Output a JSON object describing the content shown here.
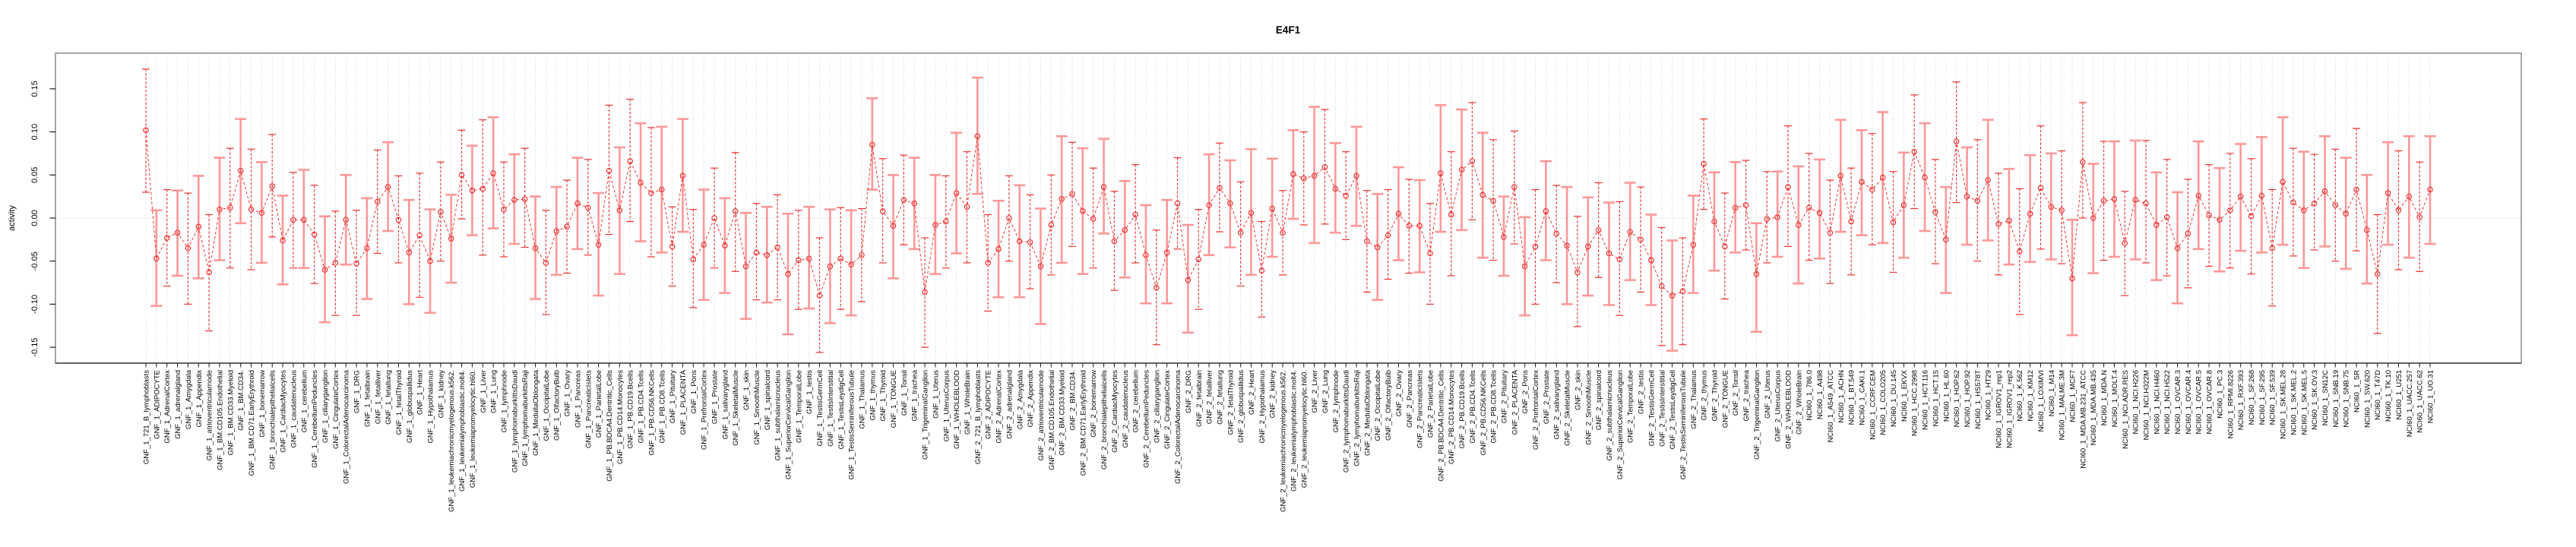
{
  "title": "E4F1",
  "axis": {
    "ylabel": "activity",
    "ytick_labels": [
      "-0.15",
      "-0.10",
      "-0.05",
      "0.00",
      "0.05",
      "0.10",
      "0.15"
    ],
    "ytick_values": [
      -0.15,
      -0.1,
      -0.05,
      0.0,
      0.05,
      0.1,
      0.15
    ]
  },
  "colors": {
    "point_red": "#ee3333",
    "bar_pink": "#ff9898",
    "grid": "#d4d4d4",
    "box": "#9c9c9c",
    "axis_black": "#1a1a1a",
    "title_black": "#000000"
  },
  "chart_data": {
    "type": "line",
    "title": "E4F1",
    "xlabel": "",
    "ylabel": "activity",
    "ylim": [
      -0.18,
      0.19
    ],
    "yticks": [
      -0.15,
      -0.1,
      -0.05,
      0.0,
      0.05,
      0.1,
      0.15
    ],
    "grid": "vertical dotted line per category, dotted zero line",
    "legend": "none",
    "point_style": "open red circles joined by dashed red line, error bars alternating dashed red / solid pink",
    "categories": [
      "GNF_1_721_B_lymphoblasts",
      "GNF_1_ADIPOCYTE",
      "GNF_1_AdrenalCortex",
      "GNF_1_adrenalgland",
      "GNF_1_Amygdala",
      "GNF_1_Appendix",
      "GNF_1_atrioventricularnode",
      "GNF_1_BM.CD105.Endothelial",
      "GNF_1_BM.CD33.Myeloid",
      "GNF_1_BM.CD34.",
      "GNF_1_BM.CD71.EarlyErythroid",
      "GNF_1_bonemarrow",
      "GNF_1_bronchialepithelialcells",
      "GNF_1_CardiacMyocytes",
      "GNF_1_caudatenucleus",
      "GNF_1_cerebellum",
      "GNF_1_CerebellumPeduncles",
      "GNF_1_ciliaryganglion",
      "GNF_1_CingulateCortex",
      "GNF_1_ColorectalAdenocarcinoma",
      "GNF_1_DRG",
      "GNF_1_fetalbrain",
      "GNF_1_fetalliver",
      "GNF_1_fetallung",
      "GNF_1_fetalThyroid",
      "GNF_1_globuspallidus",
      "GNF_1_Heart",
      "GNF_1_Hypothalamus",
      "GNF_1_kidney",
      "GNF_1_leukemiachronicmyelogenous.k562.",
      "GNF_1_leukemialymphoblastic.molt4.",
      "GNF_1_leukemiapromyelocytic.hl60.",
      "GNF_1_Liver",
      "GNF_1_Lung",
      "GNF_1_lymphnode",
      "GNF_1_lymphomaburkittsDaudi",
      "GNF_1_lymphomaburkittsRaji",
      "GNF_1_MedullaOblongata",
      "GNF_1_OccipitalLobe",
      "GNF_1_OlfactoryBulb",
      "GNF_1_Ovary",
      "GNF_1_Pancreas",
      "GNF_1_PancreaticIslets",
      "GNF_1_ParietalLobe",
      "GNF_1_PB.BDCA4.Dentritic_Cells",
      "GNF_1_PB.CD14.Monocytes",
      "GNF_1_PB.CD19.Bcells",
      "GNF_1_PB.CD4.Tcells",
      "GNF_1_PB.CD56.NKCells",
      "GNF_1_PB.CD8.Tcells",
      "GNF_1_Pituitary",
      "GNF_1_PLACENTA",
      "GNF_1_Pons",
      "GNF_1_PrefrontalCortex",
      "GNF_1_Prostate",
      "GNF_1_salivarygland",
      "GNF_1_SkeletalMuscle",
      "GNF_1_skin",
      "GNF_1_SmoothMuscle",
      "GNF_1_spinalcord",
      "GNF_1_subthalamicnucleus",
      "GNF_1_SuperiorCervicalGanglion",
      "GNF_1_TemporalLobe",
      "GNF_1_testis",
      "GNF_1_TestisGermCell",
      "GNF_1_TestisInterstitial",
      "GNF_1_TestisLeydigCell",
      "GNF_1_TestisSeminiferousTubule",
      "GNF_1_Thalamus",
      "GNF_1_thymus",
      "GNF_1_Thyroid",
      "GNF_1_TONGUE",
      "GNF_1_Tonsil",
      "GNF_1_trachea",
      "GNF_1_TrigeminalGanglion",
      "GNF_1_Uterus",
      "GNF_1_UterusCorpus",
      "GNF_1_WHOLEBLOOD",
      "GNF_1_WholeBrain",
      "GNF_2_721_B_lymphoblasts",
      "GNF_2_ADIPOCYTE",
      "GNF_2_AdrenalCortex",
      "GNF_2_adrenalgland",
      "GNF_2_Amygdala",
      "GNF_2_Appendix",
      "GNF_2_atrioventricularnode",
      "GNF_2_BM.CD105.Endothelial",
      "GNF_2_BM.CD33.Myeloid",
      "GNF_2_BM.CD34.",
      "GNF_2_BM.CD71.EarlyErythroid",
      "GNF_2_bonemarrow",
      "GNF_2_bronchialepithelialcells",
      "GNF_2_CardiacMyocytes",
      "GNF_2_caudatenucleus",
      "GNF_2_cerebellum",
      "GNF_2_CerebellumPeduncles",
      "GNF_2_ciliaryganglion",
      "GNF_2_CingulateCortex",
      "GNF_2_ColorectalAdenocarcinoma",
      "GNF_2_DRG",
      "GNF_2_fetalbrain",
      "GNF_2_fetalliver",
      "GNF_2_fetallung",
      "GNF_2_fetalThyroid",
      "GNF_2_globuspallidus",
      "GNF_2_Heart",
      "GNF_2_Hypothalamus",
      "GNF_2_kidney",
      "GNF_2_leukemiachronicmyelogenous.k562.",
      "GNF_2_leukemialymphoblastic.molt4.",
      "GNF_2_leukemiapromyelocytic.hl60.",
      "GNF_2_Liver",
      "GNF_2_Lung",
      "GNF_2_lymphnode",
      "GNF_2_lymphomaburkittsDaudi",
      "GNF_2_lymphomaburkittsRaji",
      "GNF_2_MedullaOblongata",
      "GNF_2_OccipitalLobe",
      "GNF_2_OlfactoryBulb",
      "GNF_2_Ovary",
      "GNF_2_Pancreas",
      "GNF_2_PancreaticIslets",
      "GNF_2_ParietalLobe",
      "GNF_2_PB.BDCA4.Dentritic_Cells",
      "GNF_2_PB.CD14.Monocytes",
      "GNF_2_PB.CD19.Bcells",
      "GNF_2_PB.CD4.Tcells",
      "GNF_2_PB.CD56.NKCells",
      "GNF_2_PB.CD8.Tcells",
      "GNF_2_Pituitary",
      "GNF_2_PLACENTA",
      "GNF_2_Pons",
      "GNF_2_PrefrontalCortex",
      "GNF_2_Prostate",
      "GNF_2_salivarygland",
      "GNF_2_SkeletalMuscle",
      "GNF_2_skin",
      "GNF_2_SmoothMuscle",
      "GNF_2_spinalcord",
      "GNF_2_subthalamicnucleus",
      "GNF_2_SuperiorCervicalGanglion",
      "GNF_2_TemporalLobe",
      "GNF_2_testis",
      "GNF_2_TestisGermCell",
      "GNF_2_TestisInterstitial",
      "GNF_2_TestisLeydigCell",
      "GNF_2_TestisSeminiferousTubule",
      "GNF_2_Thalamus",
      "GNF_2_thymus",
      "GNF_2_Thyroid",
      "GNF_2_TONGUE",
      "GNF_2_Tonsil",
      "GNF_2_trachea",
      "GNF_2_TrigeminalGanglion",
      "GNF_2_Uterus",
      "GNF_2_UterusCorpus",
      "GNF_2_WHOLEBLOOD",
      "GNF_2_WholeBrain",
      "NCI60_1_786.0",
      "NCI60_1_A498",
      "NCI60_1_A549_ATCC",
      "NCI60_1_ACHN",
      "NCI60_1_BT.549",
      "NCI60_1_CAKI.1",
      "NCI60_1_CCRF.CEM",
      "NCI60_1_COLO205",
      "NCI60_1_DU.145",
      "NCI60_1_EKVX",
      "NCI60_1_HCC.2998",
      "NCI60_1_HCT.116",
      "NCI60_1_HCT.15",
      "NCI60_1_HL.60",
      "NCI60_1_HOP.62",
      "NCI60_1_HOP.92",
      "NCI60_1_HS578T",
      "NCI60_1_HT29",
      "NCI60_1_IGROV1_rep1",
      "NCI60_1_IGROV1_rep2",
      "NCI60_1_K.562",
      "NCI60_1_KM12",
      "NCI60_1_LOXIMVI",
      "NCI60_1_M14",
      "NCI60_1_MALME.3M",
      "NCI60_1_MCF7",
      "NCI60_1_MDA.MB.231_ATCC",
      "NCI60_1_MDA.MB.435",
      "NCI60_1_MDA.N",
      "NCI60_1_MOLT.4",
      "NCI60_1_NCI.ADR.RES",
      "NCI60_1_NCI.H226",
      "NCI60_1_NCI.H322M",
      "NCI60_1_NCI.H460",
      "NCI60_1_NCI.H522",
      "NCI60_1_OVCAR.3",
      "NCI60_1_OVCAR.4",
      "NCI60_1_OVCAR.5",
      "NCI60_1_OVCAR.8",
      "NCI60_1_PC.3",
      "NCI60_1_RPMI.8226",
      "NCI60_1_RXF.393",
      "NCI60_1_SF.268",
      "NCI60_1_SF.295",
      "NCI60_1_SF.539",
      "NCI60_1_SK.MEL.28",
      "NCI60_1_SK.MEL.2",
      "NCI60_1_SK.MEL.5",
      "NCI60_1_SK.OV.3",
      "NCI60_1_SN12C",
      "NCI60_1_SNB.19",
      "NCI60_1_SNB.75",
      "NCI60_1_SR",
      "NCI60_1_SW.620",
      "NCI60_1_T47D",
      "NCI60_1_TK.10",
      "NCI60_1_U251",
      "NCI60_1_UACC.257",
      "NCI60_1_UACC.62",
      "NCI60_1_UO.31"
    ],
    "values": [
      0.102,
      -0.047,
      -0.023,
      -0.017,
      -0.035,
      -0.01,
      -0.063,
      0.01,
      0.012,
      0.055,
      0.01,
      0.006,
      0.037,
      -0.026,
      -0.002,
      -0.002,
      -0.019,
      -0.06,
      -0.052,
      -0.002,
      -0.053,
      -0.035,
      0.019,
      0.036,
      -0.002,
      -0.04,
      -0.02,
      -0.05,
      0.007,
      -0.024,
      0.05,
      0.032,
      0.034,
      0.052,
      0.01,
      0.021,
      0.022,
      -0.035,
      -0.052,
      -0.015,
      -0.01,
      0.017,
      0.012,
      -0.031,
      0.055,
      0.009,
      0.066,
      0.041,
      0.029,
      0.033,
      -0.033,
      0.049,
      -0.048,
      -0.031,
      0.0,
      -0.032,
      0.008,
      -0.056,
      -0.04,
      -0.043,
      -0.034,
      -0.065,
      -0.049,
      -0.047,
      -0.09,
      -0.056,
      -0.047,
      -0.054,
      -0.043,
      0.085,
      0.008,
      -0.009,
      0.021,
      0.017,
      -0.086,
      -0.008,
      -0.004,
      0.029,
      0.013,
      0.095,
      -0.052,
      -0.036,
      0.0,
      -0.027,
      -0.028,
      -0.056,
      -0.008,
      0.022,
      0.028,
      0.008,
      -0.001,
      0.036,
      -0.027,
      -0.014,
      0.004,
      -0.043,
      -0.081,
      -0.04,
      0.017,
      -0.072,
      -0.048,
      0.015,
      0.035,
      0.017,
      -0.017,
      0.006,
      -0.061,
      0.011,
      -0.017,
      0.051,
      0.046,
      0.049,
      0.059,
      0.034,
      0.026,
      0.049,
      -0.027,
      -0.034,
      -0.02,
      0.005,
      -0.009,
      -0.009,
      -0.041,
      0.052,
      0.004,
      0.056,
      0.066,
      0.027,
      0.02,
      -0.022,
      0.036,
      -0.056,
      -0.033,
      0.008,
      -0.018,
      -0.032,
      -0.063,
      -0.033,
      -0.014,
      -0.041,
      -0.048,
      -0.016,
      -0.025,
      -0.049,
      -0.079,
      -0.09,
      -0.085,
      -0.031,
      0.063,
      -0.004,
      -0.033,
      0.012,
      0.015,
      -0.065,
      -0.001,
      0.001,
      0.036,
      -0.008,
      0.012,
      0.006,
      -0.017,
      0.049,
      -0.004,
      0.042,
      0.033,
      0.047,
      -0.005,
      0.015,
      0.077,
      0.047,
      0.007,
      -0.025,
      0.089,
      0.025,
      0.02,
      0.044,
      -0.007,
      -0.003,
      -0.039,
      0.005,
      0.035,
      0.013,
      0.009,
      -0.07,
      0.065,
      0.0,
      0.02,
      0.022,
      -0.029,
      0.021,
      0.017,
      -0.008,
      0.001,
      -0.035,
      -0.018,
      0.026,
      0.003,
      -0.002,
      0.009,
      0.025,
      0.002,
      0.026,
      -0.035,
      0.042,
      0.018,
      0.009,
      0.017,
      0.031,
      0.015,
      0.005,
      0.033,
      -0.014,
      -0.065,
      0.029,
      0.009,
      0.025,
      0.001,
      0.033
    ],
    "err_hi": [
      0.173,
      0.009,
      0.033,
      0.032,
      0.029,
      0.049,
      0.004,
      0.07,
      0.081,
      0.115,
      0.08,
      0.065,
      0.097,
      0.026,
      0.053,
      0.056,
      0.038,
      0.002,
      0.008,
      0.05,
      0.009,
      0.023,
      0.079,
      0.088,
      0.049,
      0.021,
      0.052,
      0.01,
      0.065,
      0.027,
      0.102,
      0.084,
      0.114,
      0.117,
      0.065,
      0.074,
      0.081,
      0.025,
      0.009,
      0.036,
      0.044,
      0.07,
      0.068,
      0.029,
      0.131,
      0.082,
      0.138,
      0.11,
      0.105,
      0.106,
      0.013,
      0.115,
      0.01,
      0.033,
      0.058,
      0.023,
      0.076,
      0.006,
      0.017,
      0.013,
      0.027,
      0.005,
      0.009,
      0.013,
      -0.023,
      0.01,
      0.012,
      0.009,
      0.011,
      0.139,
      0.069,
      0.05,
      0.073,
      0.07,
      -0.023,
      0.05,
      0.049,
      0.099,
      0.077,
      0.163,
      0.004,
      0.02,
      0.049,
      0.038,
      0.027,
      0.011,
      0.05,
      0.095,
      0.088,
      0.081,
      0.058,
      0.092,
      0.031,
      0.043,
      0.062,
      0.015,
      -0.014,
      0.021,
      0.07,
      -0.008,
      0.01,
      0.074,
      0.087,
      0.067,
      0.042,
      0.08,
      -0.004,
      0.069,
      0.032,
      0.102,
      0.1,
      0.129,
      0.126,
      0.087,
      0.077,
      0.106,
      0.032,
      0.028,
      0.033,
      0.059,
      0.045,
      0.044,
      0.017,
      0.131,
      0.077,
      0.126,
      0.134,
      0.099,
      0.091,
      0.025,
      0.101,
      0.001,
      0.033,
      0.066,
      0.038,
      0.036,
      0.002,
      0.024,
      0.041,
      0.018,
      0.019,
      0.041,
      0.036,
      0.004,
      -0.011,
      -0.026,
      -0.023,
      0.026,
      0.115,
      0.053,
      0.029,
      0.065,
      0.067,
      -0.006,
      0.054,
      0.054,
      0.107,
      0.06,
      0.075,
      0.068,
      0.044,
      0.114,
      0.058,
      0.102,
      0.098,
      0.123,
      0.054,
      0.076,
      0.143,
      0.11,
      0.068,
      0.036,
      0.158,
      0.082,
      0.091,
      0.114,
      0.052,
      0.057,
      0.034,
      0.073,
      0.107,
      0.075,
      0.078,
      -0.002,
      0.134,
      0.063,
      0.089,
      0.089,
      0.031,
      0.09,
      0.09,
      0.053,
      0.068,
      0.03,
      0.045,
      0.089,
      0.062,
      0.058,
      0.075,
      0.086,
      0.069,
      0.094,
      0.033,
      0.117,
      0.081,
      0.077,
      0.074,
      0.095,
      0.08,
      0.07,
      0.104,
      0.05,
      0.004,
      0.088,
      0.078,
      0.095,
      0.065,
      0.095
    ],
    "err_lo": [
      0.03,
      -0.102,
      -0.079,
      -0.067,
      -0.1,
      -0.07,
      -0.131,
      -0.049,
      -0.058,
      -0.006,
      -0.06,
      -0.052,
      -0.022,
      -0.077,
      -0.058,
      -0.058,
      -0.076,
      -0.121,
      -0.113,
      -0.054,
      -0.113,
      -0.094,
      -0.041,
      -0.015,
      -0.052,
      -0.1,
      -0.092,
      -0.11,
      -0.05,
      -0.075,
      -0.001,
      -0.02,
      -0.043,
      -0.012,
      -0.045,
      -0.03,
      -0.034,
      -0.094,
      -0.112,
      -0.066,
      -0.064,
      -0.036,
      -0.043,
      -0.09,
      -0.019,
      -0.065,
      -0.004,
      -0.027,
      -0.045,
      -0.04,
      -0.079,
      -0.016,
      -0.104,
      -0.095,
      -0.058,
      -0.087,
      -0.062,
      -0.117,
      -0.095,
      -0.098,
      -0.095,
      -0.135,
      -0.106,
      -0.105,
      -0.156,
      -0.122,
      -0.106,
      -0.113,
      -0.097,
      0.033,
      -0.052,
      -0.07,
      -0.031,
      -0.036,
      -0.15,
      -0.065,
      -0.058,
      -0.041,
      -0.052,
      0.028,
      -0.108,
      -0.092,
      -0.05,
      -0.092,
      -0.082,
      -0.123,
      -0.066,
      -0.052,
      -0.033,
      -0.065,
      -0.058,
      -0.018,
      -0.084,
      -0.069,
      -0.052,
      -0.099,
      -0.147,
      -0.099,
      -0.036,
      -0.133,
      -0.106,
      -0.043,
      -0.016,
      -0.034,
      -0.079,
      -0.066,
      -0.115,
      -0.045,
      -0.066,
      -0.001,
      -0.008,
      -0.029,
      -0.007,
      -0.017,
      -0.025,
      -0.009,
      -0.086,
      -0.095,
      -0.071,
      -0.049,
      -0.064,
      -0.063,
      -0.1,
      -0.016,
      -0.067,
      -0.014,
      -0.002,
      -0.046,
      -0.049,
      -0.067,
      -0.03,
      -0.113,
      -0.1,
      -0.049,
      -0.075,
      -0.1,
      -0.126,
      -0.09,
      -0.069,
      -0.101,
      -0.113,
      -0.072,
      -0.086,
      -0.101,
      -0.148,
      -0.154,
      -0.147,
      -0.087,
      0.01,
      -0.061,
      -0.094,
      -0.04,
      -0.037,
      -0.132,
      -0.052,
      -0.045,
      -0.033,
      -0.076,
      -0.049,
      -0.047,
      -0.076,
      -0.016,
      -0.066,
      -0.02,
      -0.031,
      -0.029,
      -0.063,
      -0.046,
      0.011,
      -0.015,
      -0.053,
      -0.087,
      0.018,
      -0.031,
      -0.05,
      -0.026,
      -0.066,
      -0.054,
      -0.112,
      -0.051,
      -0.036,
      -0.048,
      -0.053,
      -0.136,
      0.0,
      -0.064,
      -0.049,
      -0.045,
      -0.09,
      -0.048,
      -0.052,
      -0.072,
      -0.067,
      -0.099,
      -0.081,
      -0.036,
      -0.056,
      -0.062,
      -0.058,
      -0.038,
      -0.065,
      -0.04,
      -0.102,
      -0.031,
      -0.044,
      -0.058,
      -0.037,
      -0.033,
      -0.05,
      -0.059,
      -0.038,
      -0.076,
      -0.134,
      -0.031,
      -0.06,
      -0.046,
      -0.062,
      -0.03
    ]
  }
}
